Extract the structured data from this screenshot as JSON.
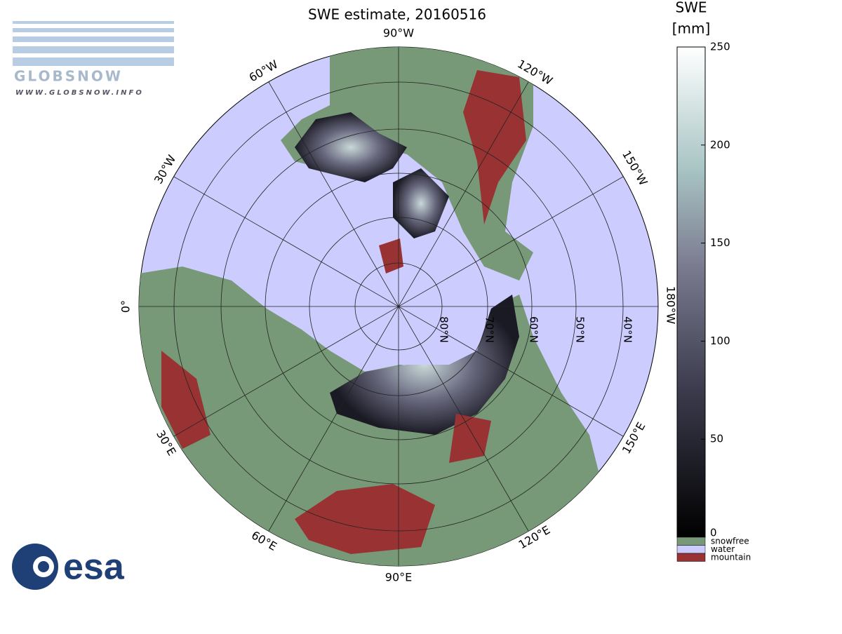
{
  "header": {
    "title": "SWE estimate, 20160516"
  },
  "logos": {
    "globsnow": "GLOBSNOW",
    "globsnow_url": "WWW.GLOBSNOW.INFO",
    "esa": "esa"
  },
  "map": {
    "longitude_labels": [
      "90°W",
      "120°W",
      "150°W",
      "180°W",
      "150°E",
      "120°E",
      "90°E",
      "60°E",
      "30°E",
      "0°",
      "30°W",
      "60°W"
    ],
    "latitude_labels": [
      "80°N",
      "70°N",
      "60°N",
      "50°N",
      "40°N"
    ]
  },
  "colorbar": {
    "label": [
      "SWE",
      "[mm]"
    ],
    "lim": [
      0,
      250
    ],
    "ticks": [
      0,
      50,
      100,
      150,
      200,
      250
    ]
  },
  "legend": [
    {
      "label": "snowfree",
      "color": "#779977"
    },
    {
      "label": "water",
      "color": "#ccccff"
    },
    {
      "label": "mountain",
      "color": "#993333"
    }
  ]
}
